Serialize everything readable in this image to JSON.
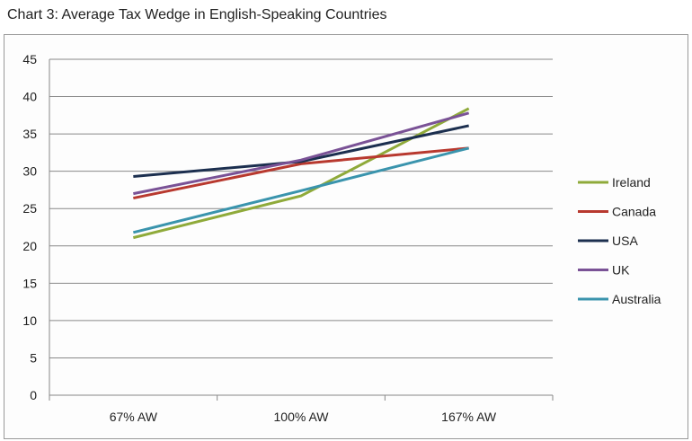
{
  "chart_data": {
    "type": "line",
    "title": "Chart 3: Average Tax Wedge in English-Speaking Countries",
    "xlabel": "",
    "ylabel": "",
    "categories": [
      "67% AW",
      "100% AW",
      "167% AW"
    ],
    "ylim": [
      0,
      45
    ],
    "yticks": [
      0,
      5,
      10,
      15,
      20,
      25,
      30,
      35,
      40,
      45
    ],
    "grid": true,
    "legend": "right",
    "series": [
      {
        "name": "Ireland",
        "color": "#8faa3a",
        "values": [
          21.1,
          26.7,
          38.4
        ]
      },
      {
        "name": "Canada",
        "color": "#b8392f",
        "values": [
          26.4,
          31.0,
          33.1
        ]
      },
      {
        "name": "USA",
        "color": "#1c2f4f",
        "values": [
          29.3,
          31.3,
          36.1
        ]
      },
      {
        "name": "UK",
        "color": "#7a5296",
        "values": [
          27.0,
          31.5,
          37.8
        ]
      },
      {
        "name": "Australia",
        "color": "#3a94ad",
        "values": [
          21.8,
          27.4,
          33.1
        ]
      }
    ]
  }
}
